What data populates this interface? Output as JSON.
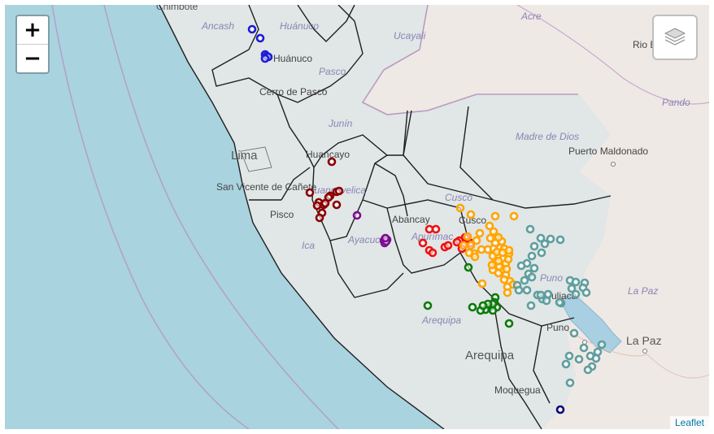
{
  "controls": {
    "zoom_in": "+",
    "zoom_out": "−",
    "layers_icon": "layers-icon"
  },
  "attribution": "Leaflet",
  "colors": {
    "sea": "#a9d3df",
    "land_peru": "#e1e6e6",
    "land_other": "#efe9e6",
    "region_border": "#1f1f1f",
    "country_border": "#b89cbf",
    "lake": "#a8cfe2"
  },
  "labels": {
    "chimbote": "Chimbote",
    "ancash": "Ancash",
    "huanuco_region": "Huánuco",
    "huanuco_city": "Huánuco",
    "ucayali": "Ucayali",
    "acre": "Acre",
    "rio_branco": "Rio B",
    "pasco": "Pasco",
    "cerro_de_pasco": "Cerro de Pasco",
    "pando": "Pando",
    "junin": "Junín",
    "madre_de_dios": "Madre de Dios",
    "lima": "Lima",
    "huancayo": "Huancayo",
    "puerto_maldonado": "Puerto Maldonado",
    "san_vicente": "San Vicente de Cañete",
    "huancavelica": "Huancavelica",
    "cusco_region": "Cusco",
    "cusco_city": "Cusco",
    "pisco": "Pisco",
    "abancay": "Abancay",
    "apurimac": "Apurímac",
    "ayacucho": "Ayacucho",
    "ica": "Ica",
    "puno_region": "Puno",
    "puno_city": "Puno",
    "juliaca": "Juliaca",
    "la_paz_region": "La Paz",
    "la_paz_city": "La Paz",
    "arequipa_region": "Arequipa",
    "arequipa_city": "Arequipa",
    "moquegua": "Moquegua"
  },
  "marker_groups": [
    {
      "name": "blue",
      "color": "#1d1dd6",
      "count": 6
    },
    {
      "name": "maroon",
      "color": "#8b0000",
      "count": 13
    },
    {
      "name": "purple",
      "color": "#7a0e8e",
      "count": 6
    },
    {
      "name": "red",
      "color": "#ee1111",
      "count": 14
    },
    {
      "name": "orange",
      "color": "#ffa500",
      "count": 48
    },
    {
      "name": "green",
      "color": "#0b7a0b",
      "count": 14
    },
    {
      "name": "teal",
      "color": "#5f9e9e",
      "count": 44
    },
    {
      "name": "navy",
      "color": "#0a0a7a",
      "count": 1
    }
  ]
}
